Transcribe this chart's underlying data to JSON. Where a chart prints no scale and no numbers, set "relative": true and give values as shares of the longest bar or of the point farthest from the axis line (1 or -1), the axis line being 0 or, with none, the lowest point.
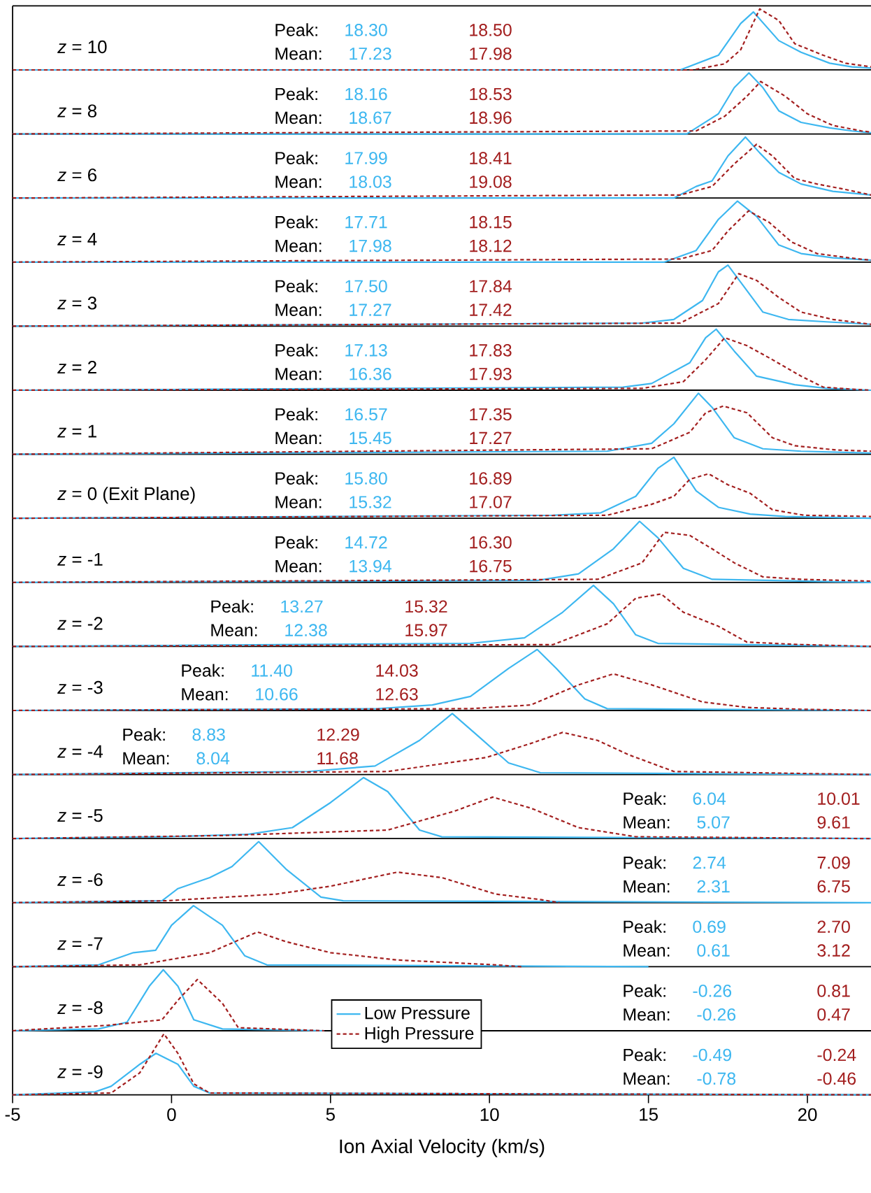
{
  "chart_data": [
    {
      "type": "line",
      "title": "*z* = 10",
      "relative": true,
      "xlim": [
        -5,
        22
      ],
      "tick_labels": false,
      "annotations": [
        "Peak:",
        "18.30",
        "18.50",
        "Mean:",
        "17.23",
        "17.98"
      ],
      "series": [
        {
          "color": "#3db7f0",
          "line_style": "solid",
          "x": [
            -5,
            16,
            17.2,
            17.9,
            18.3,
            19.1,
            19.8,
            20.7,
            21.4,
            22
          ],
          "values": [
            0,
            0,
            0.24,
            0.76,
            0.95,
            0.48,
            0.29,
            0.11,
            0.05,
            0.03
          ]
        },
        {
          "color": "#a31f1f",
          "line_style": "dashed",
          "x": [
            -5,
            16.4,
            17.4,
            17.9,
            18.5,
            19.1,
            19.6,
            20.5,
            21.2,
            22
          ],
          "values": [
            0,
            0,
            0.1,
            0.33,
            1,
            0.81,
            0.43,
            0.24,
            0.11,
            0.05
          ]
        }
      ]
    },
    {
      "type": "line",
      "title": "*z* = 8",
      "relative": true,
      "xlim": [
        -5,
        22
      ],
      "tick_labels": false,
      "annotations": [
        "Peak:",
        "18.16",
        "18.53",
        "Mean:",
        "18.67",
        "18.96"
      ],
      "series": [
        {
          "color": "#3db7f0",
          "line_style": "solid",
          "x": [
            -5,
            16.2,
            17.2,
            17.7,
            18.16,
            18.6,
            19.1,
            19.8,
            20.7,
            21.4,
            22
          ],
          "values": [
            0,
            0,
            0.33,
            0.76,
            1,
            0.76,
            0.38,
            0.19,
            0.1,
            0.05,
            0.02
          ]
        },
        {
          "color": "#a31f1f",
          "line_style": "dashed",
          "x": [
            -5,
            16.5,
            17.4,
            18.1,
            18.53,
            19.3,
            20,
            20.8,
            21.7,
            22
          ],
          "values": [
            0,
            0.05,
            0.29,
            0.62,
            0.86,
            0.62,
            0.33,
            0.14,
            0.05,
            0.03
          ]
        }
      ]
    },
    {
      "type": "line",
      "title": "*z* = 6",
      "relative": true,
      "xlim": [
        -5,
        22
      ],
      "tick_labels": false,
      "annotations": [
        "Peak:",
        "17.99",
        "18.41",
        "Mean:",
        "18.03",
        "19.08"
      ],
      "series": [
        {
          "color": "#3db7f0",
          "line_style": "solid",
          "x": [
            -5,
            15.8,
            16.5,
            17,
            17.5,
            18.05,
            18.5,
            19.1,
            19.8,
            20.8,
            22
          ],
          "values": [
            0,
            0,
            0.19,
            0.28,
            0.69,
            1,
            0.74,
            0.42,
            0.23,
            0.11,
            0.05
          ]
        },
        {
          "color": "#a31f1f",
          "line_style": "dashed",
          "x": [
            -5,
            16,
            17,
            17.7,
            18.4,
            18.9,
            19.6,
            20.3,
            21.2,
            22
          ],
          "values": [
            0,
            0.05,
            0.19,
            0.56,
            0.88,
            0.69,
            0.32,
            0.23,
            0.14,
            0.05
          ]
        }
      ]
    },
    {
      "type": "line",
      "title": "*z* = 4",
      "relative": true,
      "xlim": [
        -5,
        22
      ],
      "tick_labels": false,
      "annotations": [
        "Peak:",
        "17.71",
        "18.15",
        "Mean:",
        "17.98",
        "18.12"
      ],
      "series": [
        {
          "color": "#3db7f0",
          "line_style": "solid",
          "x": [
            -5,
            15.5,
            16.5,
            17.2,
            17.8,
            18.4,
            19.1,
            19.8,
            20.8,
            22
          ],
          "values": [
            0,
            0,
            0.19,
            0.7,
            1,
            0.75,
            0.28,
            0.14,
            0.07,
            0.03
          ]
        },
        {
          "color": "#a31f1f",
          "line_style": "dashed",
          "x": [
            -5,
            16,
            17,
            17.5,
            18.15,
            18.8,
            19.5,
            20.3,
            21.3,
            22
          ],
          "values": [
            0,
            0.05,
            0.19,
            0.51,
            0.84,
            0.65,
            0.33,
            0.14,
            0.07,
            0.03
          ]
        }
      ]
    },
    {
      "type": "line",
      "title": "*z* = 3",
      "relative": true,
      "xlim": [
        -5,
        22
      ],
      "tick_labels": false,
      "annotations": [
        "Peak:",
        "17.50",
        "17.84",
        "Mean:",
        "17.27",
        "17.42"
      ],
      "series": [
        {
          "color": "#3db7f0",
          "line_style": "solid",
          "x": [
            -5,
            14.8,
            15.8,
            16.7,
            17.2,
            17.5,
            18,
            18.6,
            19.4,
            20.6,
            22
          ],
          "values": [
            0,
            0.05,
            0.11,
            0.42,
            0.89,
            1,
            0.65,
            0.23,
            0.11,
            0.07,
            0.03
          ]
        },
        {
          "color": "#a31f1f",
          "line_style": "dashed",
          "x": [
            -5,
            16,
            17.2,
            17.84,
            18.4,
            19.1,
            19.8,
            20.8,
            22
          ],
          "values": [
            0,
            0.05,
            0.37,
            0.86,
            0.75,
            0.47,
            0.23,
            0.11,
            0.03
          ]
        }
      ]
    },
    {
      "type": "line",
      "title": "*z* = 2",
      "relative": true,
      "xlim": [
        -5,
        22
      ],
      "tick_labels": false,
      "annotations": [
        "Peak:",
        "17.13",
        "17.83",
        "Mean:",
        "16.36",
        "17.93"
      ],
      "series": [
        {
          "color": "#3db7f0",
          "line_style": "solid",
          "x": [
            -5,
            14.2,
            15.1,
            16.3,
            16.8,
            17.13,
            17.7,
            18.4,
            19.6,
            20.6,
            22
          ],
          "values": [
            0,
            0.05,
            0.11,
            0.45,
            0.86,
            1,
            0.64,
            0.23,
            0.09,
            0.03,
            0
          ]
        },
        {
          "color": "#a31f1f",
          "line_style": "dashed",
          "x": [
            -5,
            14.8,
            16.1,
            16.8,
            17.4,
            18.1,
            18.9,
            19.8,
            20.5,
            21.3,
            22
          ],
          "values": [
            0,
            0.03,
            0.14,
            0.5,
            0.86,
            0.73,
            0.5,
            0.23,
            0.05,
            0.02,
            0
          ]
        }
      ]
    },
    {
      "type": "line",
      "title": "*z* = 1",
      "relative": true,
      "xlim": [
        -5,
        22
      ],
      "tick_labels": false,
      "annotations": [
        "Peak:",
        "16.57",
        "17.35",
        "Mean:",
        "15.45",
        "17.27"
      ],
      "series": [
        {
          "color": "#3db7f0",
          "line_style": "solid",
          "x": [
            -5,
            13.7,
            15.1,
            15.8,
            16.57,
            17,
            17.7,
            18.6,
            19.8,
            22
          ],
          "values": [
            0,
            0.05,
            0.18,
            0.5,
            1,
            0.77,
            0.27,
            0.09,
            0.05,
            0.02
          ]
        },
        {
          "color": "#a31f1f",
          "line_style": "dashed",
          "x": [
            -5,
            15.1,
            16.3,
            16.8,
            17.35,
            18.1,
            18.9,
            19.6,
            20.9,
            22
          ],
          "values": [
            0,
            0.09,
            0.36,
            0.68,
            0.79,
            0.68,
            0.27,
            0.14,
            0.07,
            0.05
          ]
        }
      ]
    },
    {
      "type": "line",
      "title": "*z* = 0 (Exit Plane)",
      "relative": true,
      "xlim": [
        -5,
        22
      ],
      "tick_labels": false,
      "annotations": [
        "Peak:",
        "15.80",
        "16.89",
        "Mean:",
        "15.32",
        "17.07"
      ],
      "series": [
        {
          "color": "#3db7f0",
          "line_style": "solid",
          "x": [
            -5,
            12,
            13.5,
            14.6,
            15.3,
            15.8,
            16.5,
            17.2,
            18.2,
            19.3,
            22
          ],
          "values": [
            0,
            0.05,
            0.09,
            0.36,
            0.82,
            1,
            0.45,
            0.18,
            0.07,
            0.03,
            0
          ]
        },
        {
          "color": "#a31f1f",
          "line_style": "dashed",
          "x": [
            -5,
            13.7,
            15.1,
            15.8,
            16.3,
            16.89,
            17.5,
            18.2,
            18.9,
            19.9,
            22
          ],
          "values": [
            0,
            0.05,
            0.23,
            0.36,
            0.64,
            0.73,
            0.55,
            0.41,
            0.14,
            0.05,
            0.03
          ]
        }
      ]
    },
    {
      "type": "line",
      "title": "*z* = -1",
      "relative": true,
      "xlim": [
        -5,
        22
      ],
      "tick_labels": false,
      "annotations": [
        "Peak:",
        "14.72",
        "16.30",
        "Mean:",
        "13.94",
        "16.75"
      ],
      "series": [
        {
          "color": "#3db7f0",
          "line_style": "solid",
          "x": [
            -5,
            11.5,
            12.8,
            13.9,
            14.72,
            15.3,
            16.1,
            17,
            22
          ],
          "values": [
            0,
            0.03,
            0.14,
            0.55,
            1,
            0.73,
            0.23,
            0.05,
            0
          ]
        },
        {
          "color": "#a31f1f",
          "line_style": "dashed",
          "x": [
            -5,
            13.4,
            14.8,
            15.5,
            16.3,
            17,
            17.7,
            18.6,
            19.8,
            22
          ],
          "values": [
            0,
            0.05,
            0.32,
            0.82,
            0.77,
            0.55,
            0.32,
            0.09,
            0.05,
            0.02
          ]
        }
      ]
    },
    {
      "type": "line",
      "title": "*z* = -2",
      "relative": true,
      "xlim": [
        -5,
        22
      ],
      "tick_labels": false,
      "annotations": [
        "Peak:",
        "13.27",
        "15.32",
        "Mean:",
        "12.38",
        "15.97"
      ],
      "series": [
        {
          "color": "#3db7f0",
          "line_style": "solid",
          "x": [
            -5,
            9.4,
            11.1,
            12.3,
            13.27,
            13.9,
            14.6,
            15.3,
            22
          ],
          "values": [
            0,
            0.05,
            0.14,
            0.56,
            1,
            0.7,
            0.19,
            0.05,
            0
          ]
        },
        {
          "color": "#a31f1f",
          "line_style": "dashed",
          "x": [
            -5,
            12,
            13.7,
            14.6,
            15.4,
            16.1,
            17.2,
            18.1,
            19.8,
            22
          ],
          "values": [
            0,
            0.03,
            0.37,
            0.79,
            0.86,
            0.56,
            0.33,
            0.07,
            0.03,
            0
          ]
        }
      ]
    },
    {
      "type": "line",
      "title": "*z* = -3",
      "relative": true,
      "xlim": [
        -5,
        22
      ],
      "tick_labels": false,
      "annotations": [
        "Peak:",
        "11.40",
        "14.03",
        "Mean:",
        "10.66",
        "12.63"
      ],
      "series": [
        {
          "color": "#3db7f0",
          "line_style": "solid",
          "x": [
            -5,
            6.5,
            8.2,
            9.4,
            10.6,
            11.5,
            12.1,
            13,
            13.7,
            22
          ],
          "values": [
            0,
            0.03,
            0.09,
            0.23,
            0.69,
            1,
            0.69,
            0.19,
            0.03,
            0
          ]
        },
        {
          "color": "#a31f1f",
          "line_style": "dashed",
          "x": [
            -5,
            9.4,
            11.3,
            12.8,
            13.9,
            15.1,
            16.7,
            18.1,
            19.8,
            22
          ],
          "values": [
            0,
            0.03,
            0.09,
            0.42,
            0.6,
            0.42,
            0.14,
            0.05,
            0.02,
            0
          ]
        }
      ]
    },
    {
      "type": "line",
      "title": "*z* = -4",
      "relative": true,
      "xlim": [
        -5,
        22
      ],
      "tick_labels": false,
      "annotations": [
        "Peak:",
        "8.83",
        "12.29",
        "Mean:",
        "8.04",
        "11.68"
      ],
      "series": [
        {
          "color": "#3db7f0",
          "line_style": "solid",
          "x": [
            -5,
            4.3,
            6.4,
            7.8,
            8.83,
            9.6,
            10.6,
            11.6,
            22
          ],
          "values": [
            0,
            0.05,
            0.14,
            0.56,
            1,
            0.65,
            0.19,
            0.03,
            0
          ]
        },
        {
          "color": "#a31f1f",
          "line_style": "dashed",
          "x": [
            -5,
            6.8,
            9.9,
            11.3,
            12.3,
            13.4,
            14.4,
            15.8,
            22
          ],
          "values": [
            0,
            0.05,
            0.28,
            0.51,
            0.69,
            0.56,
            0.32,
            0.05,
            0
          ]
        }
      ]
    },
    {
      "type": "line",
      "title": "*z* = -5",
      "relative": true,
      "xlim": [
        -5,
        22
      ],
      "tick_labels": false,
      "annotations": [
        "Peak:",
        "6.04",
        "10.01",
        "Mean:",
        "5.07",
        "9.61"
      ],
      "series": [
        {
          "color": "#3db7f0",
          "line_style": "solid",
          "x": [
            -5,
            -0.2,
            2.4,
            3.8,
            5,
            6.04,
            6.8,
            7.8,
            8.5,
            22
          ],
          "values": [
            0,
            0.03,
            0.07,
            0.18,
            0.59,
            1,
            0.77,
            0.14,
            0.03,
            0
          ]
        },
        {
          "color": "#a31f1f",
          "line_style": "dashed",
          "x": [
            -5,
            1.6,
            6.8,
            8.9,
            10.1,
            11.3,
            12.8,
            14.6,
            22
          ],
          "values": [
            0,
            0.05,
            0.14,
            0.45,
            0.68,
            0.5,
            0.18,
            0.03,
            0
          ]
        }
      ]
    },
    {
      "type": "line",
      "title": "*z* = -6",
      "relative": true,
      "xlim": [
        -5,
        22
      ],
      "tick_labels": false,
      "annotations": [
        "Peak:",
        "2.74",
        "7.09",
        "Mean:",
        "2.31",
        "6.75"
      ],
      "series": [
        {
          "color": "#3db7f0",
          "line_style": "solid",
          "x": [
            -5,
            -0.3,
            0.2,
            1.2,
            1.9,
            2.74,
            3.6,
            4.7,
            5.4,
            22
          ],
          "values": [
            0,
            0.03,
            0.23,
            0.41,
            0.59,
            1,
            0.55,
            0.09,
            0.03,
            0
          ]
        },
        {
          "color": "#a31f1f",
          "line_style": "dashed",
          "x": [
            -5,
            -0.2,
            3.3,
            5,
            7.1,
            8.5,
            10.2,
            11.6,
            12.2
          ],
          "values": [
            0,
            0.03,
            0.14,
            0.27,
            0.5,
            0.41,
            0.14,
            0.05,
            0
          ]
        }
      ]
    },
    {
      "type": "line",
      "title": "*z* = -7",
      "relative": true,
      "xlim": [
        -5,
        22
      ],
      "tick_labels": false,
      "annotations": [
        "Peak:",
        "0.69",
        "2.70",
        "Mean:",
        "0.61",
        "3.12"
      ],
      "series": [
        {
          "color": "#3db7f0",
          "line_style": "solid",
          "x": [
            -5,
            -2.3,
            -1.2,
            -0.5,
            0,
            0.69,
            1.6,
            2.3,
            3,
            15
          ],
          "values": [
            0,
            0.03,
            0.23,
            0.27,
            0.68,
            1,
            0.68,
            0.18,
            0.03,
            0
          ]
        },
        {
          "color": "#a31f1f",
          "line_style": "dashed",
          "x": [
            -5,
            -1,
            1.2,
            2.7,
            3.6,
            5,
            7.1,
            10.2,
            11
          ],
          "values": [
            0,
            0.03,
            0.23,
            0.57,
            0.41,
            0.23,
            0.11,
            0.03,
            0
          ]
        }
      ]
    },
    {
      "type": "line",
      "title": "*z* = -8",
      "relative": true,
      "xlim": [
        -5,
        22
      ],
      "tick_labels": false,
      "legend": "bottom",
      "annotations": [
        "Peak:",
        "-0.26",
        "0.81",
        "Mean:",
        "-0.26",
        "0.47"
      ],
      "series": [
        {
          "name": "Low Pressure",
          "color": "#3db7f0",
          "line_style": "solid",
          "x": [
            -5,
            -2.3,
            -1.4,
            -0.7,
            -0.26,
            0.2,
            0.7,
            1.6,
            4.8
          ],
          "values": [
            0,
            0.03,
            0.14,
            0.73,
            1,
            0.73,
            0.18,
            0.03,
            0
          ]
        },
        {
          "name": "High Pressure",
          "color": "#a31f1f",
          "line_style": "dashed",
          "x": [
            -5,
            -2,
            -0.3,
            0.2,
            0.81,
            1.6,
            2.1,
            4.8
          ],
          "values": [
            0,
            0.09,
            0.18,
            0.5,
            0.84,
            0.45,
            0.05,
            0
          ]
        }
      ]
    },
    {
      "type": "line",
      "title": "*z* = -9",
      "relative": true,
      "xlim": [
        -5,
        22
      ],
      "xticks": [
        -5,
        0,
        5,
        10,
        15,
        20
      ],
      "tick_labels": "x",
      "xlabel": "Ion Axial Velocity (km/s)",
      "annotations": [
        "Peak:",
        "-0.49",
        "-0.24",
        "Mean:",
        "-0.78",
        "-0.46"
      ],
      "series": [
        {
          "color": "#3db7f0",
          "line_style": "solid",
          "x": [
            -5,
            -2.4,
            -1.9,
            -1,
            -0.49,
            0.2,
            0.7,
            1.2,
            22
          ],
          "values": [
            0,
            0.05,
            0.14,
            0.5,
            0.68,
            0.5,
            0.14,
            0.03,
            0
          ]
        },
        {
          "color": "#a31f1f",
          "line_style": "dashed",
          "x": [
            -5,
            -1.9,
            -1,
            -0.24,
            0.2,
            0.7,
            1.2,
            22
          ],
          "values": [
            0,
            0.03,
            0.36,
            1,
            0.68,
            0.18,
            0.03,
            0
          ]
        }
      ]
    }
  ]
}
